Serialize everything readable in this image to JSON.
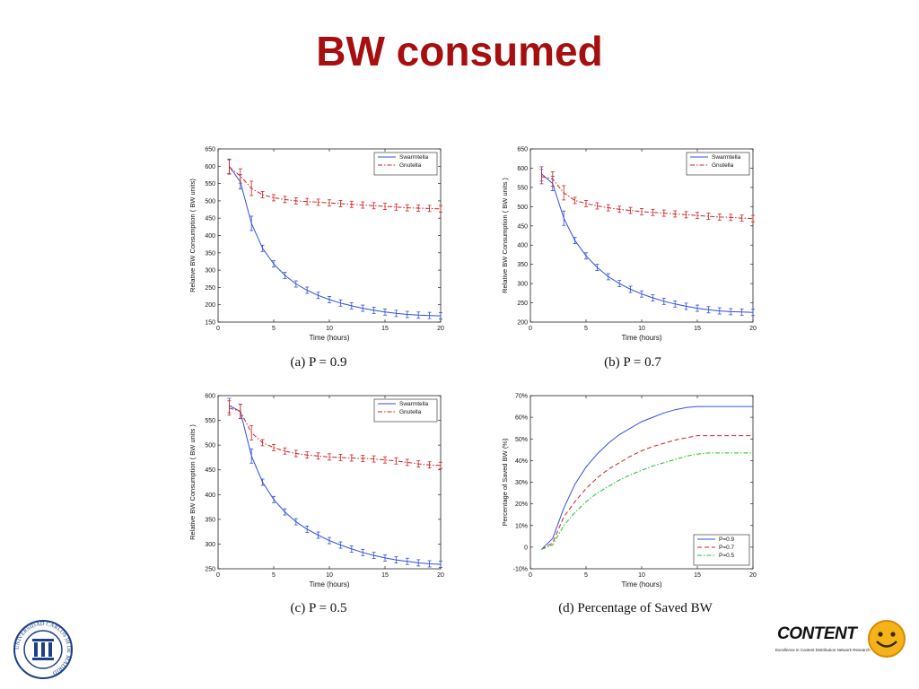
{
  "slide": {
    "title": "BW consumed"
  },
  "colors": {
    "title": "#a50f0f",
    "swarmtella": "#3050e0",
    "gnutella": "#d42020",
    "p05": "#20c020"
  },
  "chart_data": [
    {
      "id": "a",
      "type": "line",
      "caption": "(a) P = 0.9",
      "xlabel": "Time (hours)",
      "ylabel": "Relative BW Consumption ( BW units)",
      "xlim": [
        0,
        20
      ],
      "ylim": [
        150,
        650
      ],
      "xticks": [
        0,
        5,
        10,
        15,
        20
      ],
      "yticks": [
        150,
        200,
        250,
        300,
        350,
        400,
        450,
        500,
        550,
        600,
        650
      ],
      "legend": "top-right",
      "x": [
        1,
        2,
        3,
        4,
        5,
        6,
        7,
        8,
        9,
        10,
        11,
        12,
        13,
        14,
        15,
        16,
        17,
        18,
        19,
        20
      ],
      "series": [
        {
          "name": "Swarmtella",
          "style": "solid",
          "colorKey": "swarmtella",
          "values": [
            600,
            555,
            435,
            363,
            318,
            285,
            260,
            242,
            227,
            215,
            205,
            197,
            190,
            184,
            179,
            175,
            172,
            170,
            169,
            168
          ]
        },
        {
          "name": "Gnutella",
          "style": "dashdot",
          "colorKey": "gnutella",
          "values": [
            598,
            572,
            536,
            518,
            509,
            504,
            500,
            498,
            496,
            494,
            492,
            490,
            488,
            486,
            484,
            482,
            480,
            479,
            478,
            477
          ]
        }
      ]
    },
    {
      "id": "b",
      "type": "line",
      "caption": "(b) P = 0.7",
      "xlabel": "Time (hours)",
      "ylabel": "Relative BW Consumption ( BW units )",
      "xlim": [
        0,
        20
      ],
      "ylim": [
        200,
        650
      ],
      "xticks": [
        0,
        5,
        10,
        15,
        20
      ],
      "yticks": [
        200,
        250,
        300,
        350,
        400,
        450,
        500,
        550,
        600,
        650
      ],
      "legend": "top-right",
      "x": [
        1,
        2,
        3,
        4,
        5,
        6,
        7,
        8,
        9,
        10,
        11,
        12,
        13,
        14,
        15,
        16,
        17,
        18,
        19,
        20
      ],
      "series": [
        {
          "name": "Swarmtella",
          "style": "solid",
          "colorKey": "swarmtella",
          "values": [
            585,
            560,
            470,
            412,
            372,
            342,
            318,
            300,
            285,
            273,
            263,
            254,
            247,
            241,
            236,
            232,
            229,
            227,
            226,
            225
          ]
        },
        {
          "name": "Gnutella",
          "style": "dashdot",
          "colorKey": "gnutella",
          "values": [
            578,
            572,
            536,
            516,
            508,
            502,
            497,
            493,
            490,
            487,
            485,
            483,
            481,
            479,
            477,
            475,
            473,
            472,
            470,
            469
          ]
        }
      ]
    },
    {
      "id": "c",
      "type": "line",
      "caption": "(c) P = 0.5",
      "xlabel": "Time (hours)",
      "ylabel": "Relative BW Consumption ( BW units )",
      "xlim": [
        0,
        20
      ],
      "ylim": [
        250,
        600
      ],
      "xticks": [
        0,
        5,
        10,
        15,
        20
      ],
      "yticks": [
        250,
        300,
        350,
        400,
        450,
        500,
        550,
        600
      ],
      "legend": "top-right",
      "x": [
        1,
        2,
        3,
        4,
        5,
        6,
        7,
        8,
        9,
        10,
        11,
        12,
        13,
        14,
        15,
        16,
        17,
        18,
        19,
        20
      ],
      "series": [
        {
          "name": "Swarmtella",
          "style": "solid",
          "colorKey": "swarmtella",
          "values": [
            580,
            568,
            478,
            425,
            390,
            365,
            345,
            330,
            318,
            307,
            298,
            290,
            283,
            277,
            272,
            268,
            265,
            262,
            260,
            259
          ]
        },
        {
          "name": "Gnutella",
          "style": "dashdot",
          "colorKey": "gnutella",
          "values": [
            575,
            568,
            525,
            505,
            495,
            488,
            483,
            480,
            478,
            476,
            475,
            474,
            473,
            472,
            470,
            468,
            465,
            462,
            460,
            459
          ]
        }
      ]
    },
    {
      "id": "d",
      "type": "line",
      "caption": "(d) Percentage of Saved BW",
      "xlabel": "Time (hours)",
      "ylabel": "Percentage of Saved BW (%)",
      "xlim": [
        0,
        20
      ],
      "ylim": [
        -10,
        70
      ],
      "xticks": [
        0,
        5,
        10,
        15,
        20
      ],
      "yticks": [
        -10,
        0,
        10,
        20,
        30,
        40,
        50,
        60,
        70
      ],
      "yticklabels": [
        "-10%",
        "0",
        "10%",
        "20%",
        "30%",
        "40%",
        "50%",
        "60%",
        "70%"
      ],
      "legend": "bottom-right",
      "x": [
        1,
        2,
        3,
        4,
        5,
        6,
        7,
        8,
        9,
        10,
        11,
        12,
        13,
        14,
        15,
        16,
        17,
        18,
        19,
        20
      ],
      "series": [
        {
          "name": "P=0.9",
          "style": "solid",
          "colorKey": "swarmtella",
          "values": [
            -1,
            4,
            18,
            29,
            37,
            43,
            48,
            52,
            55,
            58,
            60,
            62,
            63.5,
            64.5,
            65,
            65,
            65,
            65,
            65,
            65
          ]
        },
        {
          "name": "P=0.7",
          "style": "dashed",
          "colorKey": "gnutella",
          "values": [
            -1,
            2,
            14,
            21,
            27,
            32,
            36,
            39,
            42,
            44.5,
            46.5,
            48,
            49.5,
            50.5,
            51.5,
            51.5,
            51.5,
            51.5,
            51.5,
            51.5
          ]
        },
        {
          "name": "P=0.5",
          "style": "dashdot",
          "colorKey": "p05",
          "values": [
            -1,
            1,
            10,
            16,
            21,
            25,
            28,
            31,
            33.5,
            35.5,
            37.5,
            39,
            40.5,
            42,
            43,
            43.5,
            43.5,
            43.5,
            43.5,
            43.5
          ]
        }
      ]
    }
  ],
  "logos": {
    "left_seal_text": "UNIVERSIDAD CARLOS III DE MADRID",
    "right_word": "CONTENT",
    "right_tagline": "Excellence in Content Distribution Network Research"
  }
}
